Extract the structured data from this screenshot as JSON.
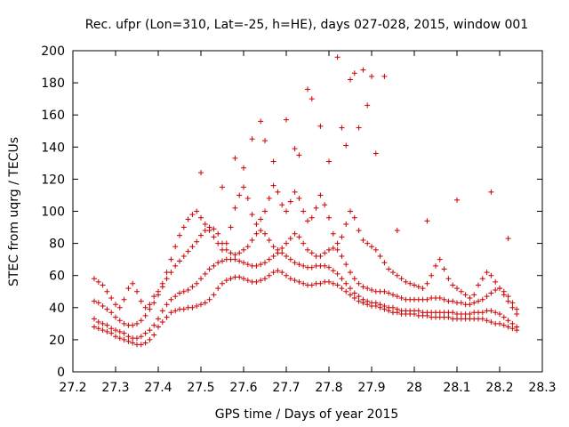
{
  "chart_data": {
    "type": "scatter",
    "title": "Rec. ufpr (Lon=310, Lat=-25, h=HE), days 027-028, 2015, window 001",
    "xlabel": "GPS time / Days of year 2015",
    "ylabel": "STEC from uqrg / TECUs",
    "xlim": [
      27.2,
      28.3
    ],
    "ylim": [
      0,
      200
    ],
    "xticks": [
      "27.2",
      "27.3",
      "27.4",
      "27.5",
      "27.6",
      "27.7",
      "27.8",
      "27.9",
      "28",
      "28.1",
      "28.2",
      "28.3"
    ],
    "yticks": [
      "0",
      "20",
      "40",
      "60",
      "80",
      "100",
      "120",
      "140",
      "160",
      "180",
      "200"
    ],
    "marker": "+",
    "color": "#cc0000",
    "grid": false,
    "legend": "none",
    "series": [
      {
        "x": [
          27.25,
          27.26,
          27.27,
          27.28,
          27.29,
          27.3,
          27.31,
          27.32,
          27.33,
          27.34,
          27.35,
          27.36,
          27.37,
          27.38,
          27.39,
          27.4,
          27.41,
          27.42,
          27.43,
          27.44,
          27.45,
          27.46,
          27.47,
          27.48,
          27.49,
          27.5,
          27.51,
          27.52,
          27.53,
          27.54,
          27.55,
          27.56,
          27.57,
          27.58,
          27.59,
          27.6,
          27.61,
          27.62,
          27.63,
          27.64,
          27.65,
          27.66,
          27.67,
          27.68,
          27.69,
          27.7,
          27.71,
          27.72,
          27.73,
          27.74,
          27.75,
          27.76,
          27.77,
          27.78,
          27.79,
          27.8,
          27.81,
          27.82,
          27.83,
          27.84,
          27.85,
          27.86,
          27.87,
          27.88,
          27.89,
          27.9,
          27.91,
          27.92,
          27.93,
          27.94,
          27.95,
          27.96,
          27.97,
          27.98,
          27.99,
          28.0,
          28.01,
          28.02,
          28.03,
          28.04,
          28.05,
          28.06,
          28.07,
          28.08,
          28.09,
          28.1,
          28.11,
          28.12,
          28.13,
          28.14,
          28.15,
          28.16,
          28.17,
          28.18,
          28.19,
          28.2,
          28.21,
          28.22,
          28.23,
          28.24
        ],
        "y": [
          28,
          27,
          26,
          25,
          24,
          22,
          21,
          20,
          19,
          18,
          17,
          17,
          18,
          20,
          23,
          28,
          31,
          34,
          37,
          38,
          39,
          39,
          40,
          40,
          41,
          42,
          43,
          45,
          48,
          52,
          55,
          57,
          58,
          59,
          59,
          58,
          57,
          56,
          56,
          57,
          58,
          60,
          62,
          63,
          62,
          60,
          58,
          57,
          56,
          55,
          54,
          54,
          55,
          55,
          56,
          56,
          55,
          54,
          52,
          50,
          48,
          46,
          44,
          43,
          42,
          41,
          41,
          40,
          39,
          38,
          37,
          37,
          36,
          36,
          36,
          36,
          35,
          35,
          35,
          34,
          34,
          34,
          34,
          34,
          33,
          33,
          33,
          33,
          33,
          33,
          33,
          33,
          32,
          31,
          30,
          30,
          29,
          28,
          27,
          26
        ]
      },
      {
        "x": [
          27.25,
          27.26,
          27.27,
          27.28,
          27.29,
          27.3,
          27.31,
          27.32,
          27.33,
          27.34,
          27.35,
          27.36,
          27.37,
          27.38,
          27.39,
          27.4,
          27.41,
          27.42,
          27.43,
          27.44,
          27.45,
          27.46,
          27.47,
          27.48,
          27.49,
          27.5,
          27.51,
          27.52,
          27.53,
          27.54,
          27.55,
          27.56,
          27.57,
          27.58,
          27.59,
          27.6,
          27.61,
          27.62,
          27.63,
          27.64,
          27.65,
          27.66,
          27.67,
          27.68,
          27.69,
          27.7,
          27.71,
          27.72,
          27.73,
          27.74,
          27.75,
          27.76,
          27.77,
          27.78,
          27.79,
          27.8,
          27.81,
          27.82,
          27.83,
          27.84,
          27.85,
          27.86,
          27.87,
          27.88,
          27.89,
          27.9,
          27.91,
          27.92,
          27.93,
          27.94,
          27.95,
          27.96,
          27.97,
          27.98,
          27.99,
          28.0,
          28.01,
          28.02,
          28.03,
          28.04,
          28.05,
          28.06,
          28.07,
          28.08,
          28.09,
          28.1,
          28.11,
          28.12,
          28.13,
          28.14,
          28.15,
          28.16,
          28.17,
          28.18,
          28.19,
          28.2,
          28.21,
          28.22,
          28.23,
          28.24
        ],
        "y": [
          33,
          31,
          30,
          29,
          27,
          26,
          25,
          24,
          22,
          21,
          21,
          22,
          24,
          26,
          29,
          33,
          38,
          42,
          45,
          47,
          49,
          50,
          51,
          53,
          55,
          58,
          61,
          64,
          66,
          68,
          69,
          70,
          70,
          70,
          69,
          68,
          67,
          66,
          66,
          67,
          68,
          70,
          72,
          74,
          74,
          72,
          70,
          68,
          67,
          66,
          65,
          65,
          66,
          66,
          66,
          65,
          63,
          61,
          58,
          55,
          52,
          49,
          47,
          45,
          44,
          43,
          43,
          42,
          41,
          40,
          40,
          39,
          38,
          38,
          38,
          38,
          38,
          37,
          37,
          37,
          37,
          37,
          37,
          37,
          37,
          36,
          36,
          36,
          36,
          37,
          37,
          37,
          38,
          38,
          37,
          36,
          34,
          32,
          30,
          28
        ]
      },
      {
        "x": [
          27.25,
          27.26,
          27.27,
          27.28,
          27.29,
          27.3,
          27.31,
          27.32,
          27.33,
          27.34,
          27.35,
          27.36,
          27.37,
          27.38,
          27.39,
          27.4,
          27.41,
          27.42,
          27.43,
          27.44,
          27.45,
          27.46,
          27.47,
          27.48,
          27.49,
          27.5,
          27.51,
          27.52,
          27.53,
          27.54,
          27.55,
          27.56,
          27.57,
          27.58,
          27.59,
          27.6,
          27.61,
          27.62,
          27.63,
          27.64,
          27.65,
          27.66,
          27.67,
          27.68,
          27.69,
          27.7,
          27.71,
          27.72,
          27.73,
          27.74,
          27.75,
          27.76,
          27.77,
          27.78,
          27.79,
          27.8,
          27.81,
          27.82,
          27.83,
          27.84,
          27.85,
          27.86,
          27.87,
          27.88,
          27.89,
          27.9,
          27.91,
          27.92,
          27.93,
          27.94,
          27.95,
          27.96,
          27.97,
          27.98,
          27.99,
          28.0,
          28.01,
          28.02,
          28.03,
          28.04,
          28.05,
          28.06,
          28.07,
          28.08,
          28.09,
          28.1,
          28.11,
          28.12,
          28.13,
          28.14,
          28.15,
          28.16,
          28.17,
          28.18,
          28.19,
          28.2,
          28.21,
          28.22,
          28.23,
          28.24
        ],
        "y": [
          44,
          43,
          41,
          39,
          37,
          34,
          32,
          30,
          29,
          29,
          30,
          32,
          35,
          39,
          43,
          48,
          53,
          58,
          62,
          66,
          69,
          72,
          75,
          78,
          81,
          85,
          88,
          90,
          89,
          86,
          80,
          76,
          74,
          73,
          74,
          76,
          78,
          82,
          86,
          88,
          86,
          82,
          78,
          76,
          77,
          80,
          83,
          86,
          84,
          80,
          76,
          74,
          72,
          72,
          74,
          76,
          77,
          76,
          72,
          67,
          62,
          58,
          55,
          53,
          52,
          51,
          50,
          50,
          50,
          49,
          48,
          47,
          46,
          45,
          45,
          45,
          45,
          45,
          45,
          46,
          46,
          46,
          45,
          44,
          44,
          43,
          43,
          42,
          42,
          43,
          44,
          45,
          47,
          49,
          51,
          52,
          50,
          47,
          43,
          39
        ]
      },
      {
        "x": [
          27.25,
          27.26,
          27.27,
          27.28,
          27.29,
          27.3,
          27.31,
          27.32,
          27.33,
          27.34,
          27.35,
          27.36,
          27.37,
          27.38,
          27.39,
          27.4,
          27.41,
          27.42,
          27.43,
          27.44,
          27.45,
          27.46,
          27.47,
          27.48,
          27.49,
          27.5,
          27.51,
          27.52,
          27.53,
          27.54,
          27.55,
          27.56,
          27.57,
          27.58,
          27.59,
          27.6,
          27.61,
          27.62,
          27.63,
          27.64,
          27.65,
          27.66,
          27.67,
          27.68,
          27.69,
          27.7,
          27.71,
          27.72,
          27.73,
          27.74,
          27.75,
          27.76,
          27.77,
          27.78,
          27.79,
          27.8,
          27.81,
          27.82,
          27.83,
          27.84,
          27.85,
          27.86,
          27.87,
          27.88,
          27.89,
          27.9,
          27.91,
          27.92,
          27.93,
          27.94,
          27.95,
          27.96,
          27.97,
          27.98,
          27.99,
          28.0,
          28.01,
          28.02,
          28.03,
          28.04,
          28.05,
          28.06,
          28.07,
          28.08,
          28.09,
          28.1,
          28.11,
          28.12,
          28.13,
          28.14,
          28.15,
          28.16,
          28.17,
          28.18,
          28.19,
          28.2,
          28.21,
          28.22,
          28.23,
          28.24
        ],
        "y": [
          58,
          56,
          54,
          50,
          46,
          42,
          40,
          45,
          52,
          55,
          50,
          44,
          40,
          42,
          47,
          50,
          55,
          62,
          70,
          78,
          85,
          90,
          95,
          98,
          100,
          96,
          92,
          88,
          84,
          80,
          76,
          80,
          90,
          102,
          110,
          115,
          108,
          98,
          92,
          95,
          100,
          108,
          116,
          112,
          104,
          100,
          106,
          112,
          108,
          100,
          94,
          96,
          102,
          110,
          104,
          96,
          86,
          80,
          84,
          92,
          100,
          96,
          88,
          82,
          80,
          78,
          76,
          72,
          68,
          64,
          62,
          60,
          58,
          56,
          55,
          54,
          53,
          52,
          55,
          60,
          66,
          70,
          64,
          58,
          54,
          52,
          50,
          48,
          46,
          48,
          54,
          58,
          62,
          60,
          56,
          52,
          48,
          44,
          40,
          36
        ]
      },
      {
        "x": [
          27.5,
          27.55,
          27.58,
          27.6,
          27.62,
          27.64,
          27.65,
          27.67,
          27.7,
          27.72,
          27.73,
          27.75,
          27.76,
          27.78,
          27.8,
          27.82,
          27.83,
          27.84,
          27.85,
          27.86,
          27.87,
          27.88,
          27.89,
          27.9,
          27.91,
          27.93,
          27.96,
          28.03,
          28.1,
          28.18,
          28.22
        ],
        "y": [
          124,
          115,
          133,
          127,
          145,
          156,
          144,
          131,
          157,
          139,
          135,
          176,
          170,
          153,
          131,
          196,
          152,
          141,
          182,
          186,
          152,
          188,
          166,
          184,
          136,
          184,
          88,
          94,
          107,
          112,
          83
        ]
      }
    ]
  }
}
